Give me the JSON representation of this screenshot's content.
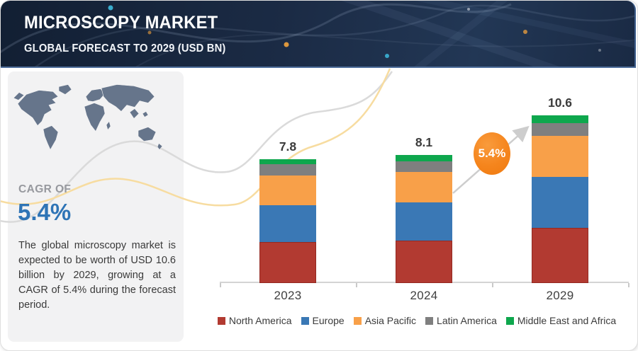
{
  "header": {
    "title": "MICROSCOPY MARKET",
    "subtitle": "GLOBAL FORECAST TO 2029 (USD BN)"
  },
  "sidebar": {
    "cagr_label": "CAGR OF",
    "cagr_value": "5.4%",
    "description": "The global microscopy market is expected to be worth of USD 10.6 billion by 2029, growing at a CAGR of 5.4% during the forecast period."
  },
  "annotation": {
    "cagr_badge": "5.4%"
  },
  "colors": {
    "header_bg": "#1B2B45",
    "accent_orange": "#F5851D",
    "cagr_blue": "#2E74B6",
    "axis_gray": "#D4D4D4"
  },
  "chart_data": {
    "type": "bar",
    "stacked": true,
    "title": "MICROSCOPY MARKET",
    "subtitle": "GLOBAL FORECAST TO 2029 (USD BN)",
    "unit": "USD BN",
    "categories": [
      "2023",
      "2024",
      "2029"
    ],
    "series": [
      {
        "name": "North America",
        "color": "#B23A31",
        "values": [
          2.6,
          2.7,
          3.5
        ]
      },
      {
        "name": "Europe",
        "color": "#3A78B5",
        "values": [
          2.3,
          2.4,
          3.2
        ]
      },
      {
        "name": "Asia Pacific",
        "color": "#F8A049",
        "values": [
          1.9,
          1.9,
          2.6
        ]
      },
      {
        "name": "Latin America",
        "color": "#7F7F7F",
        "values": [
          0.7,
          0.7,
          0.8
        ]
      },
      {
        "name": "Middle East and Africa",
        "color": "#0EA74D",
        "values": [
          0.3,
          0.4,
          0.5
        ]
      }
    ],
    "totals": [
      7.8,
      8.1,
      10.6
    ],
    "total_labels": [
      "7.8",
      "8.1",
      "10.6"
    ],
    "annotation_text": "5.4%",
    "legend_position": "bottom",
    "grid": false,
    "ylim": [
      0,
      11
    ]
  }
}
